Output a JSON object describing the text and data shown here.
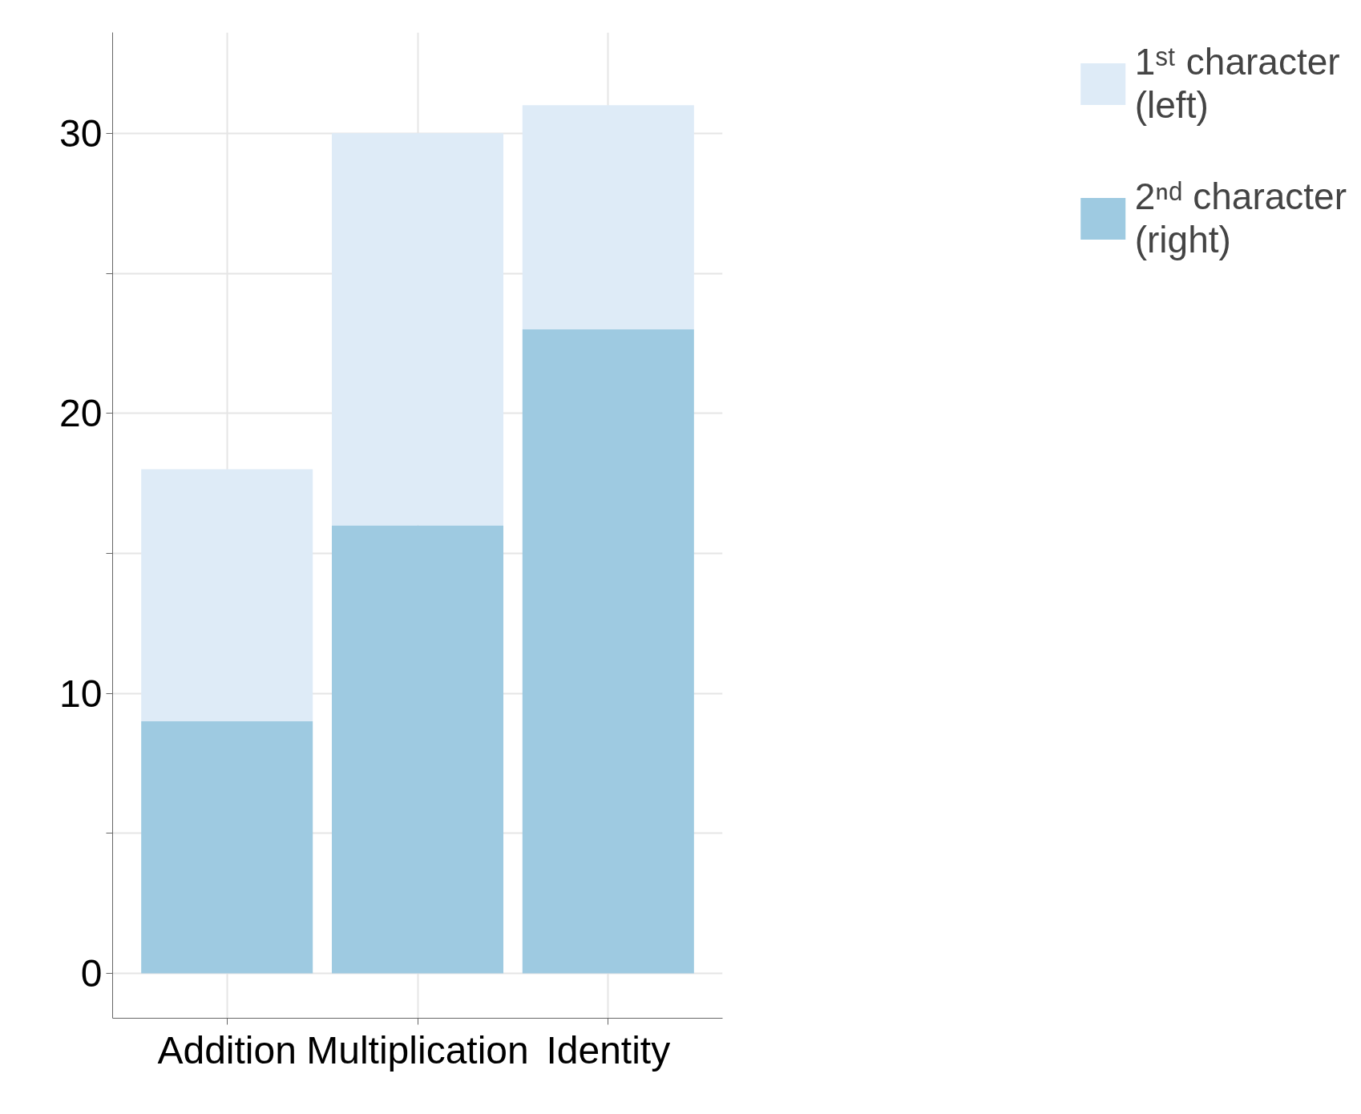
{
  "chart_data": {
    "type": "bar",
    "stacked": true,
    "categories": [
      "Addition",
      "Multiplication",
      "Identity"
    ],
    "series": [
      {
        "name": "2ⁿᵈ character\n(right)",
        "color": "#9ecae1",
        "values": [
          9,
          16,
          23
        ]
      },
      {
        "name": "1ˢᵗ character\n(left)",
        "color": "#deebf7",
        "values": [
          9,
          14,
          8
        ]
      }
    ],
    "ylim": [
      -1.6,
      33.6
    ],
    "yticks": [
      0,
      {
        "value": 5,
        "label": null
      },
      10,
      {
        "value": 15,
        "label": null
      },
      20,
      {
        "value": 25,
        "label": null
      },
      30
    ],
    "grid": true,
    "legend": "right"
  }
}
